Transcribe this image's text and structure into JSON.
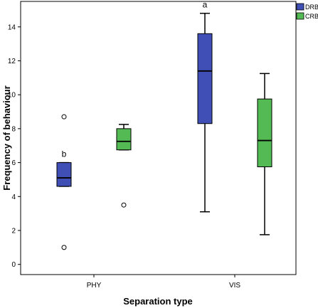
{
  "chart_data": {
    "type": "boxplot",
    "title": "",
    "xlabel": "Separation type",
    "ylabel": "Frequency of behaviour",
    "categories": [
      "PHY",
      "VIS"
    ],
    "ylim": [
      -0.6,
      15.5
    ],
    "yticks": [
      "0",
      "2",
      "4",
      "6",
      "8",
      "10",
      "12",
      "14"
    ],
    "grid": false,
    "legend_position": "top-right",
    "series": [
      {
        "name": "DRB",
        "color": "#3f4fb5",
        "boxes": [
          {
            "category": "PHY",
            "whisker_low": 4.6,
            "q1": 4.6,
            "median": 5.1,
            "q3": 6.0,
            "whisker_high": 6.0,
            "outliers": [
              8.7,
              1.0
            ],
            "annotation": "b"
          },
          {
            "category": "VIS",
            "whisker_low": 3.1,
            "q1": 8.3,
            "median": 11.4,
            "q3": 13.6,
            "whisker_high": 14.8,
            "outliers": [],
            "annotation": "a"
          }
        ]
      },
      {
        "name": "CRB",
        "color": "#54bb54",
        "boxes": [
          {
            "category": "PHY",
            "whisker_low": 6.75,
            "q1": 6.75,
            "median": 7.25,
            "q3": 8.0,
            "whisker_high": 8.25,
            "outliers": [
              3.5
            ],
            "annotation": ""
          },
          {
            "category": "VIS",
            "whisker_low": 1.75,
            "q1": 5.75,
            "median": 7.3,
            "q3": 9.75,
            "whisker_high": 11.25,
            "outliers": [],
            "annotation": ""
          }
        ]
      }
    ]
  }
}
